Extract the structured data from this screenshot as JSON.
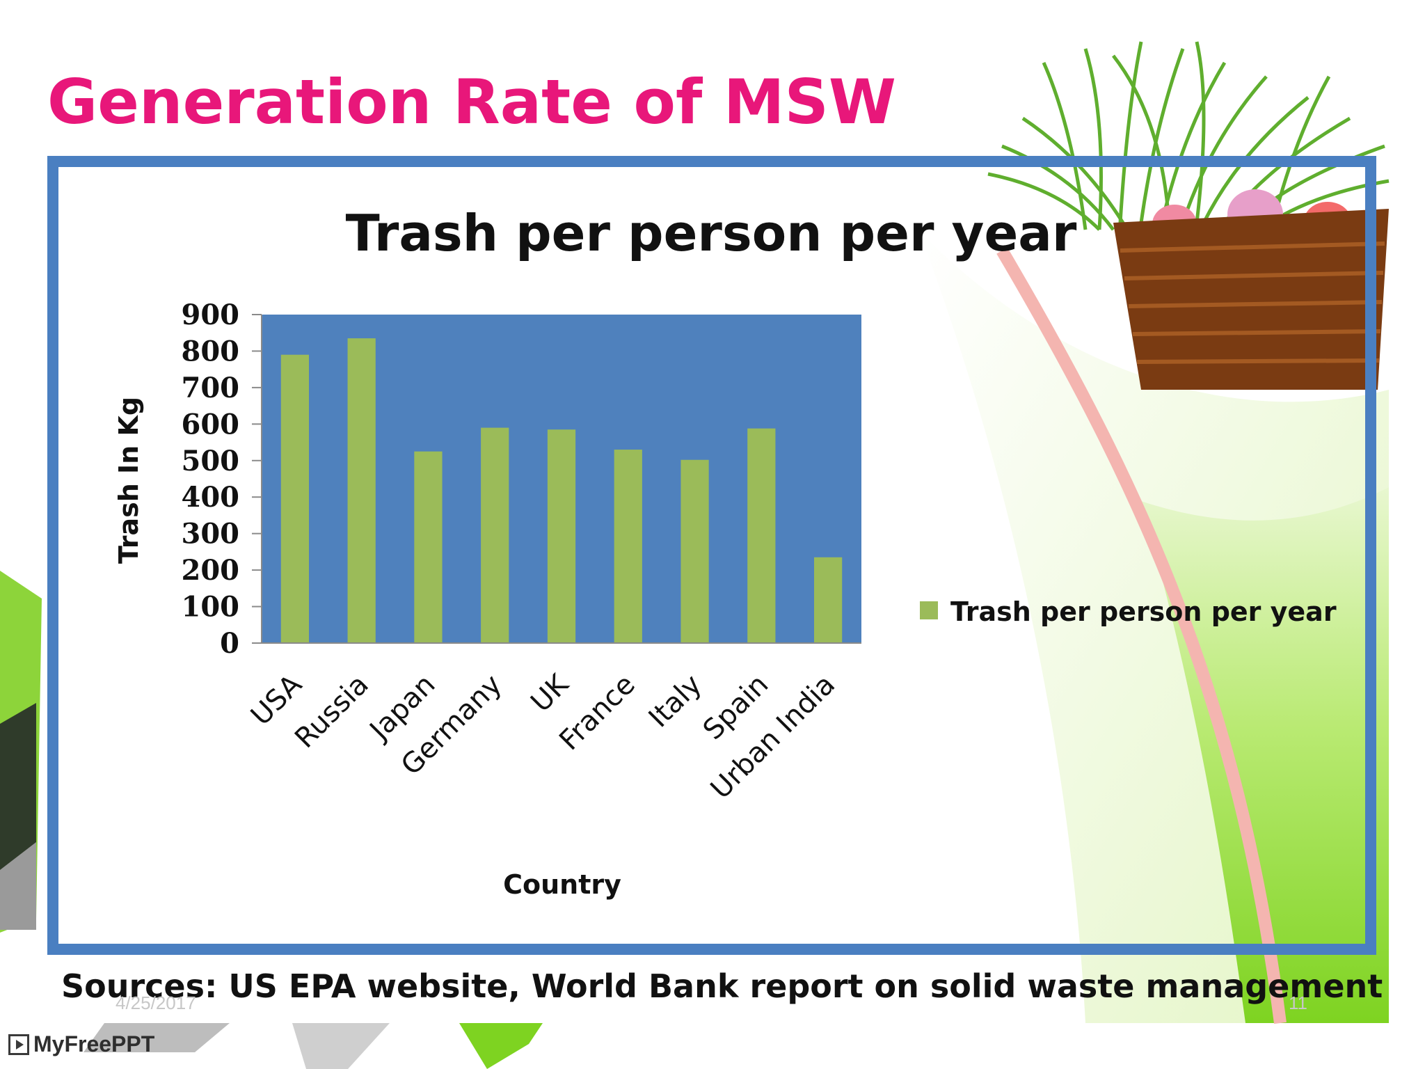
{
  "slide": {
    "title": "Generation Rate of MSW",
    "sources": "Sources: US EPA website, World Bank report on solid waste management",
    "date": "4/25/2017",
    "page_number": "11",
    "brand": "MyFreePPT"
  },
  "colors": {
    "title": "#e8177a",
    "frame": "#4a7fc1",
    "plot_area": "#4f81bd",
    "bar": "#9bbb59",
    "grass_green": "#7ed321",
    "light_green": "#e6f6c8"
  },
  "icons": [
    "basket-image",
    "play-icon"
  ],
  "chart_data": {
    "type": "bar",
    "title": "Trash per person per year",
    "xlabel": "Country",
    "ylabel": "Trash In Kg",
    "categories": [
      "USA",
      "Russia",
      "Japan",
      "Germany",
      "UK",
      "France",
      "Italy",
      "Spain",
      "Urban India"
    ],
    "series": [
      {
        "name": "Trash per person per year",
        "values": [
          790,
          835,
          525,
          590,
          585,
          530,
          502,
          588,
          235
        ]
      }
    ],
    "ylim": [
      0,
      900
    ],
    "yticks": [
      "0",
      "100",
      "200",
      "300",
      "400",
      "500",
      "600",
      "700",
      "800",
      "900"
    ],
    "legend_position": "right",
    "grid": false
  }
}
